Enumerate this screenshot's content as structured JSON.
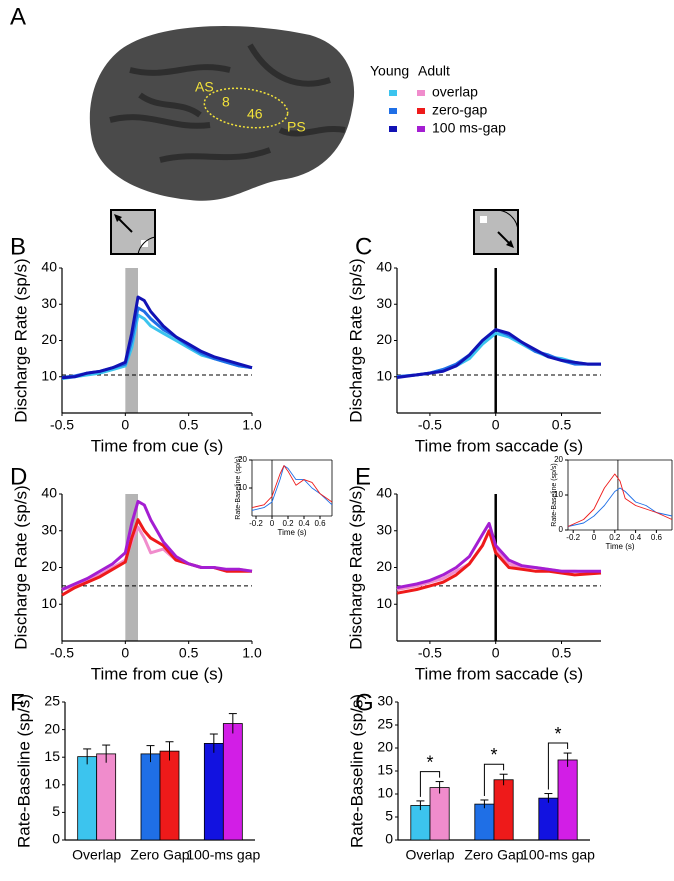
{
  "panel_a": {
    "letter": "A",
    "regions": [
      "AS",
      "8",
      "46",
      "PS"
    ],
    "legend": {
      "groups": [
        "Young",
        "Adult"
      ],
      "entries": [
        {
          "name": "overlap",
          "young": "#3cc4ee",
          "adult": "#f08ccc"
        },
        {
          "name": "zero-gap",
          "young": "#1f6fe6",
          "adult": "#ee1a1a"
        },
        {
          "name": "100 ms-gap",
          "young": "#1212b4",
          "adult": "#a41ed2"
        }
      ]
    }
  },
  "chart_data": [
    {
      "type": "line",
      "panel": "B",
      "xlabel": "Time from cue (s)",
      "ylabel": "Discharge Rate (sp/s)",
      "x": [
        -0.5,
        -0.4,
        -0.3,
        -0.2,
        -0.1,
        0,
        0.05,
        0.1,
        0.15,
        0.2,
        0.3,
        0.4,
        0.5,
        0.6,
        0.7,
        0.8,
        0.9,
        1.0
      ],
      "series": [
        {
          "color": "#3cc4ee",
          "values": [
            9.5,
            10,
            10.5,
            11,
            12,
            13,
            18,
            27,
            26,
            24,
            22,
            20,
            18,
            16,
            15,
            14,
            13,
            12.5
          ]
        },
        {
          "color": "#1f6fe6",
          "values": [
            9.8,
            10.2,
            11,
            11.5,
            12.5,
            13.5,
            20,
            29,
            28,
            26,
            23,
            21,
            18.5,
            16.5,
            15,
            14,
            13,
            12.5
          ]
        },
        {
          "color": "#1212b4",
          "values": [
            9.7,
            10,
            11,
            11.5,
            12.5,
            14,
            22,
            32,
            31,
            28,
            24,
            21,
            19,
            17,
            15.5,
            14.5,
            13.5,
            12.5
          ]
        }
      ],
      "shade": [
        0,
        0.1
      ],
      "baseline": 10.5,
      "xlim": [
        -0.5,
        1.0
      ],
      "xticks": [
        -0.5,
        0,
        0.5,
        {
          "value": 1,
          "label": "1.0"
        }
      ],
      "ylim": [
        0,
        40
      ],
      "yticks": [
        10,
        20,
        30,
        40
      ]
    },
    {
      "type": "line",
      "panel": "C",
      "xlabel": "Time from saccade (s)",
      "ylabel": "Discharge Rate (sp/s)",
      "x": [
        -0.75,
        -0.6,
        -0.5,
        -0.4,
        -0.3,
        -0.2,
        -0.1,
        0,
        0.1,
        0.2,
        0.3,
        0.4,
        0.5,
        0.6,
        0.7,
        0.8
      ],
      "series": [
        {
          "color": "#3cc4ee",
          "values": [
            10,
            10.5,
            11,
            12,
            13,
            15,
            19,
            22,
            21,
            19,
            17,
            15.5,
            15,
            14,
            13.5,
            13.5
          ]
        },
        {
          "color": "#1f6fe6",
          "values": [
            10,
            10.5,
            11,
            12,
            13.5,
            16,
            20,
            23,
            21.5,
            19.5,
            17,
            16,
            14.5,
            13.5,
            13.5,
            13.5
          ]
        },
        {
          "color": "#1212b4",
          "values": [
            9.8,
            10.5,
            11,
            11.5,
            13,
            16,
            20,
            23,
            22,
            19.5,
            17.5,
            15.5,
            14.5,
            14,
            13.5,
            13.5
          ]
        }
      ],
      "marker_x": 0,
      "baseline": 10.5,
      "xlim": [
        -0.75,
        0.8
      ],
      "xticks": [
        -0.5,
        0,
        0.5
      ],
      "ylim": [
        0,
        40
      ],
      "yticks": [
        10,
        20,
        30,
        40
      ]
    },
    {
      "type": "line",
      "panel": "D",
      "xlabel": "Time from cue (s)",
      "ylabel": "Discharge Rate (sp/s)",
      "x": [
        -0.5,
        -0.4,
        -0.3,
        -0.2,
        -0.1,
        0,
        0.05,
        0.1,
        0.15,
        0.2,
        0.3,
        0.4,
        0.5,
        0.6,
        0.7,
        0.8,
        0.9,
        1.0
      ],
      "series": [
        {
          "color": "#f08ccc",
          "values": [
            14,
            15,
            16.5,
            18,
            20,
            22,
            27,
            31,
            28,
            24,
            25,
            22,
            21,
            20,
            20,
            19,
            19.5,
            19
          ]
        },
        {
          "color": "#ee1a1a",
          "values": [
            12.5,
            14.5,
            16,
            17.5,
            19.5,
            21.5,
            28,
            33,
            30,
            28,
            26,
            22,
            21,
            20,
            20,
            19,
            19,
            19
          ]
        },
        {
          "color": "#a41ed2",
          "values": [
            14,
            15.5,
            17,
            19,
            21,
            24,
            32,
            38,
            37,
            33,
            27,
            23,
            21,
            20,
            20,
            19.5,
            19.5,
            19
          ]
        }
      ],
      "shade": [
        0,
        0.1
      ],
      "baseline": 15,
      "xlim": [
        -0.5,
        1.0
      ],
      "xticks": [
        -0.5,
        0,
        0.5,
        {
          "value": 1,
          "label": "1.0"
        }
      ],
      "ylim": [
        0,
        40
      ],
      "yticks": [
        10,
        20,
        30,
        40
      ],
      "inset": {
        "xlabel": "Time (s)",
        "ylabel": "Rate-Baseline (sp/s)",
        "x": [
          -0.25,
          -0.1,
          0,
          0.1,
          0.15,
          0.2,
          0.3,
          0.4,
          0.5,
          0.6,
          0.75
        ],
        "series": [
          {
            "color": "#1f6fe6",
            "values": [
              2,
              3,
              5,
              13,
              18,
              17,
              13,
              13,
              10,
              8,
              4
            ]
          },
          {
            "color": "#ee1a1a",
            "values": [
              3,
              4,
              7,
              15,
              18,
              16,
              11,
              13,
              12,
              8,
              5
            ]
          }
        ],
        "marker_x": 0,
        "xlim": [
          -0.25,
          0.75
        ],
        "xticks": [
          -0.2,
          0,
          0.2,
          0.4,
          0.6
        ],
        "ylim": [
          0,
          20
        ],
        "yticks": [
          10,
          20
        ]
      }
    },
    {
      "type": "line",
      "panel": "E",
      "xlabel": "Time from saccade (s)",
      "ylabel": "Discharge Rate (sp/s)",
      "x": [
        -0.75,
        -0.6,
        -0.5,
        -0.4,
        -0.3,
        -0.2,
        -0.1,
        -0.05,
        0,
        0.1,
        0.2,
        0.3,
        0.4,
        0.5,
        0.6,
        0.8
      ],
      "series": [
        {
          "color": "#f08ccc",
          "values": [
            14,
            15,
            16,
            17,
            19,
            21,
            26,
            30,
            25,
            21,
            20,
            20,
            19.5,
            19,
            19,
            18.5
          ]
        },
        {
          "color": "#ee1a1a",
          "values": [
            13,
            14,
            15,
            16,
            18,
            21,
            26,
            30,
            24,
            20,
            19.5,
            19,
            19,
            18.5,
            18,
            18.5
          ]
        },
        {
          "color": "#a41ed2",
          "values": [
            14.5,
            15.5,
            16.5,
            18,
            20,
            23,
            29,
            32,
            26,
            22,
            20.5,
            20,
            19.5,
            19,
            19,
            19
          ]
        }
      ],
      "marker_x": 0,
      "baseline": 15,
      "xlim": [
        -0.75,
        0.8
      ],
      "xticks": [
        -0.5,
        0,
        0.5
      ],
      "ylim": [
        0,
        40
      ],
      "yticks": [
        10,
        20,
        30,
        40
      ],
      "inset": {
        "xlabel": "Time (s)",
        "ylabel": "Rate-Baseline (sp/s)",
        "x": [
          -0.25,
          -0.1,
          0,
          0.1,
          0.2,
          0.25,
          0.3,
          0.4,
          0.5,
          0.6,
          0.75
        ],
        "series": [
          {
            "color": "#1f6fe6",
            "values": [
              1,
              2,
              4,
              7,
              11,
              12,
              11,
              8,
              7,
              5,
              4
            ]
          },
          {
            "color": "#ee1a1a",
            "values": [
              1,
              3,
              6,
              12,
              16,
              14,
              9,
              7,
              6,
              5,
              3
            ]
          }
        ],
        "marker_x": 0.23,
        "xlim": [
          -0.25,
          0.75
        ],
        "xticks": [
          -0.2,
          0,
          0.2,
          0.4,
          0.6
        ],
        "ylim": [
          0,
          20
        ],
        "yticks": [
          0,
          10,
          20
        ]
      }
    },
    {
      "type": "bar",
      "panel": "F",
      "ylabel": "Rate-Baseline (sp/s)",
      "categories": [
        "Overlap",
        "Zero Gap",
        "100-ms gap"
      ],
      "series": [
        {
          "colors": [
            "#3cc4ee",
            "#1f6fe6",
            "#1212e0"
          ],
          "values": [
            15.1,
            15.6,
            17.5
          ],
          "errors": [
            1.4,
            1.5,
            1.7
          ]
        },
        {
          "colors": [
            "#f08ccc",
            "#ee1a1a",
            "#d21ee6"
          ],
          "values": [
            15.6,
            16.1,
            21.1
          ],
          "errors": [
            1.6,
            1.7,
            1.8
          ]
        }
      ],
      "ylim": [
        0,
        25
      ],
      "yticks": [
        0,
        5,
        10,
        15,
        20,
        25
      ]
    },
    {
      "type": "bar",
      "panel": "G",
      "ylabel": "Rate-Baseline (sp/s)",
      "categories": [
        "Overlap",
        "Zero Gap",
        "100-ms gap"
      ],
      "series": [
        {
          "colors": [
            "#3cc4ee",
            "#1f6fe6",
            "#1212e0"
          ],
          "values": [
            7.5,
            7.8,
            9.1
          ],
          "errors": [
            1.0,
            0.9,
            1.0
          ]
        },
        {
          "colors": [
            "#f08ccc",
            "#ee1a1a",
            "#d21ee6"
          ],
          "values": [
            11.4,
            13.1,
            17.4
          ],
          "errors": [
            1.3,
            1.2,
            1.5
          ]
        }
      ],
      "annotations": [
        "*",
        "*",
        "*"
      ],
      "ylim": [
        0,
        30
      ],
      "yticks": [
        0,
        5,
        10,
        15,
        20,
        25,
        30
      ]
    }
  ]
}
